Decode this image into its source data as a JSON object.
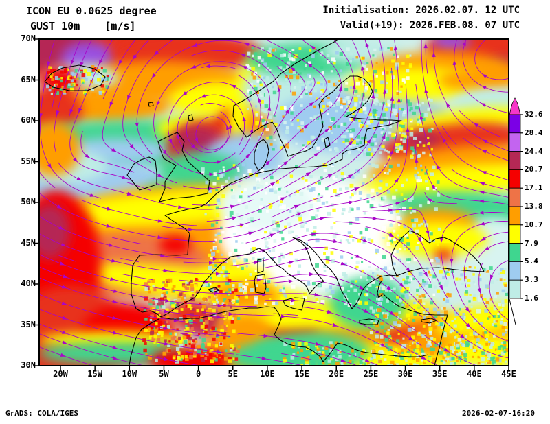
{
  "header": {
    "model": "ICON EU 0.0625 degree",
    "field_line": "GUST 10m    [m/s]",
    "init": "Initialisation: 2026.02.07. 12 UTC",
    "valid": "Valid(+19): 2026.FEB.08. 07 UTC"
  },
  "map": {
    "lat_labels": [
      "70N",
      "65N",
      "60N",
      "55N",
      "50N",
      "45N",
      "40N",
      "35N",
      "30N"
    ],
    "lon_labels": [
      "20W",
      "15W",
      "10W",
      "5W",
      "0",
      "5E",
      "10E",
      "15E",
      "20E",
      "25E",
      "30E",
      "35E",
      "40E",
      "45E"
    ]
  },
  "legend": {
    "values": [
      "32.6",
      "28.4",
      "24.4",
      "20.7",
      "17.1",
      "13.8",
      "10.7",
      "7.9",
      "5.4",
      "3.3",
      "1.6"
    ],
    "colors": [
      "#7B00E6",
      "#C364F0",
      "#B52855",
      "#F50000",
      "#EE7347",
      "#FF9E00",
      "#FFFF00",
      "#3FD68F",
      "#9FCCF0",
      "#BFEDE6"
    ],
    "pennant_color": "#F637C8"
  },
  "footer": {
    "credit": "GrADS: COLA/IGES",
    "timestamp": "2026-02-07-16:20"
  },
  "colors": {
    "streamline": "#A805C8",
    "coast": "#000000",
    "frame": "#000000",
    "base": "#CFEFEA"
  }
}
